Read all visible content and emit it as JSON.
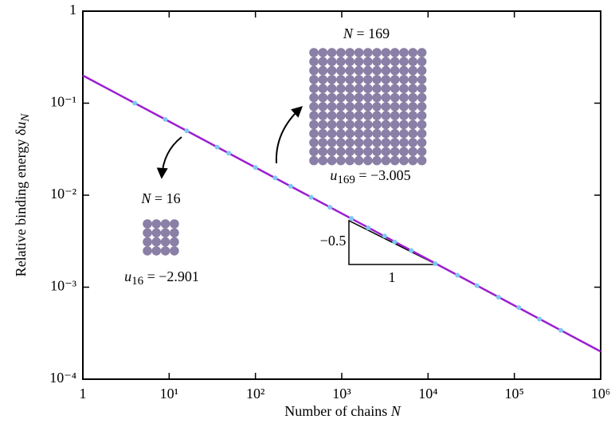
{
  "chart_data": {
    "type": "line",
    "xlabel": "Number of chains ",
    "xlabel_var": "N",
    "ylabel": "Relative binding energy δ",
    "ylabel_var": "u",
    "ylabel_sub": "N",
    "log_x": true,
    "log_y": true,
    "xlim": [
      1,
      1000000
    ],
    "ylim": [
      0.0001,
      1
    ],
    "xticks": [
      1,
      {
        "value": 10,
        "label": "10¹"
      },
      {
        "value": 100,
        "label": "10²"
      },
      {
        "value": 1000,
        "label": "10³"
      },
      {
        "value": 10000,
        "label": "10⁴"
      },
      {
        "value": 100000,
        "label": "10⁵"
      },
      {
        "value": 1000000,
        "label": "10⁶"
      }
    ],
    "yticks": [
      1,
      {
        "value": 0.1,
        "label": "10⁻¹"
      },
      {
        "value": 0.01,
        "label": "10⁻²"
      },
      {
        "value": 0.001,
        "label": "10⁻³"
      },
      {
        "value": 0.0001,
        "label": "10⁻⁴"
      }
    ],
    "series": [
      {
        "color": "#9b1fd0",
        "style": "line",
        "x": [
          1,
          1000000
        ],
        "values": [
          0.2,
          0.0002
        ]
      },
      {
        "color": "#7ec8f0",
        "style": "points",
        "x": [
          4,
          9,
          16,
          36,
          49,
          100,
          169,
          256,
          441,
          729,
          1296,
          2025,
          3136,
          4096,
          6400,
          12100,
          21904,
          36864,
          65536,
          112896,
          195364,
          345744
        ],
        "values": [
          0.1,
          0.0667,
          0.05,
          0.0333,
          0.0286,
          0.02,
          0.0154,
          0.0125,
          0.0095,
          0.0074,
          0.0056,
          0.0044,
          0.0036,
          0.0031,
          0.0025,
          0.0018,
          0.00135,
          0.00104,
          0.00078,
          0.0006,
          0.00045,
          0.00034
        ]
      }
    ],
    "annotations": {
      "n169": {
        "var": "N",
        "tail": " = 169"
      },
      "u169": {
        "var": "u",
        "sub": "169",
        "tail": " = −3.005"
      },
      "n16": {
        "var": "N",
        "tail": " = 16"
      },
      "u16": {
        "var": "u",
        "sub": "16",
        "tail": " = −2.901"
      },
      "slope": "−0.5",
      "run": "1"
    }
  }
}
